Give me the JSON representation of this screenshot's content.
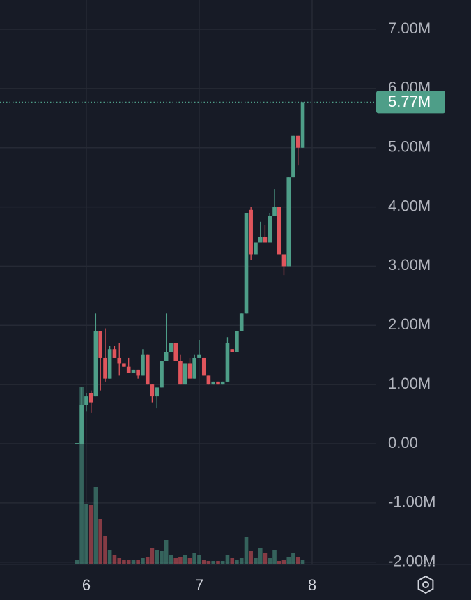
{
  "chart_data": {
    "type": "candlestick",
    "x": [
      5.917,
      5.958,
      6.0,
      6.042,
      6.083,
      6.125,
      6.167,
      6.208,
      6.25,
      6.292,
      6.333,
      6.375,
      6.417,
      6.458,
      6.5,
      6.542,
      6.583,
      6.625,
      6.667,
      6.708,
      6.75,
      6.792,
      6.833,
      6.875,
      6.917,
      6.958,
      7.0,
      7.042,
      7.083,
      7.125,
      7.167,
      7.208,
      7.25,
      7.292,
      7.333,
      7.375,
      7.417,
      7.458,
      7.5,
      7.542,
      7.583,
      7.625,
      7.667,
      7.708,
      7.75,
      7.792,
      7.833,
      7.875,
      7.917
    ],
    "open": [
      0,
      0,
      0.65,
      0.85,
      0.8,
      1.9,
      1.45,
      1.1,
      1.6,
      1.45,
      1.35,
      1.3,
      1.2,
      1.25,
      1.15,
      1.5,
      1.0,
      0.8,
      0.95,
      1.4,
      1.55,
      1.7,
      1.4,
      1.0,
      1.35,
      1.1,
      1.45,
      1.45,
      1.15,
      1.0,
      1.05,
      1.0,
      1.05,
      1.6,
      1.55,
      1.9,
      2.2,
      3.95,
      3.2,
      3.4,
      3.5,
      3.4,
      3.85,
      4.0,
      3.2,
      3.0,
      4.5,
      5.2,
      5.0
    ],
    "high": [
      0.01,
      0.95,
      0.85,
      0.9,
      2.2,
      1.9,
      1.95,
      1.65,
      1.65,
      1.7,
      1.35,
      1.45,
      1.25,
      1.25,
      1.6,
      1.5,
      1.0,
      0.95,
      1.4,
      2.2,
      1.7,
      1.7,
      1.5,
      1.35,
      1.45,
      1.5,
      1.75,
      1.45,
      1.15,
      1.05,
      1.05,
      1.05,
      1.8,
      1.6,
      1.9,
      2.2,
      3.9,
      4.0,
      3.4,
      3.75,
      3.7,
      3.9,
      4.3,
      4.0,
      3.2,
      4.5,
      5.2,
      5.2,
      5.77
    ],
    "low": [
      0,
      0,
      0.55,
      0.52,
      0.8,
      0.9,
      1.05,
      1.1,
      1.45,
      1.15,
      1.3,
      1.2,
      1.2,
      1.1,
      1.15,
      1.0,
      0.7,
      0.6,
      0.95,
      1.4,
      1.55,
      1.4,
      1.0,
      1.0,
      1.1,
      1.1,
      1.45,
      1.15,
      1.0,
      1.0,
      1.0,
      1.0,
      1.05,
      1.55,
      1.55,
      1.9,
      2.2,
      3.1,
      3.2,
      3.4,
      3.4,
      3.4,
      3.85,
      3.2,
      2.85,
      3.0,
      4.5,
      4.7,
      5.0
    ],
    "close": [
      0.01,
      0.65,
      0.8,
      0.7,
      1.9,
      1.45,
      1.1,
      1.6,
      1.45,
      1.35,
      1.3,
      1.2,
      1.25,
      1.15,
      1.5,
      1.0,
      0.8,
      0.95,
      1.4,
      1.55,
      1.7,
      1.4,
      1.0,
      1.35,
      1.1,
      1.45,
      1.5,
      1.15,
      1.0,
      1.05,
      1.0,
      1.05,
      1.7,
      1.55,
      1.9,
      2.2,
      3.9,
      3.2,
      3.4,
      3.5,
      3.4,
      3.85,
      4.0,
      3.2,
      3.0,
      4.5,
      5.2,
      5.0,
      5.77
    ],
    "volume": [
      6,
      253,
      86,
      84,
      110,
      64,
      40,
      19,
      12,
      8,
      6,
      6,
      6,
      6,
      8,
      10,
      22,
      20,
      18,
      34,
      12,
      8,
      10,
      12,
      8,
      16,
      12,
      6,
      4,
      4,
      4,
      4,
      12,
      8,
      6,
      8,
      38,
      18,
      8,
      22,
      16,
      8,
      20,
      4,
      6,
      10,
      16,
      10,
      6
    ],
    "volume_ylim": [
      0,
      260
    ],
    "up_color": "#4e9e88",
    "down_color": "#e0555c",
    "xlim": [
      5.235,
      8.568
    ],
    "xticks": [
      6,
      7,
      8
    ],
    "ylim": [
      -2.027,
      7.495
    ],
    "yticks": [
      {
        "value": -2,
        "label": "-2.00M"
      },
      {
        "value": -1,
        "label": "-1.00M"
      },
      {
        "value": 0,
        "label": "0.00"
      },
      {
        "value": 1,
        "label": "1.00M"
      },
      {
        "value": 2,
        "label": "2.00M"
      },
      {
        "value": 3,
        "label": "3.00M"
      },
      {
        "value": 4,
        "label": "4.00M"
      },
      {
        "value": 5,
        "label": "5.00M"
      },
      {
        "value": 6,
        "label": "6.00M"
      },
      {
        "value": 7,
        "label": "7.00M"
      }
    ],
    "last_price": {
      "value": 5.77,
      "label": "5.77M"
    },
    "grid": true
  }
}
